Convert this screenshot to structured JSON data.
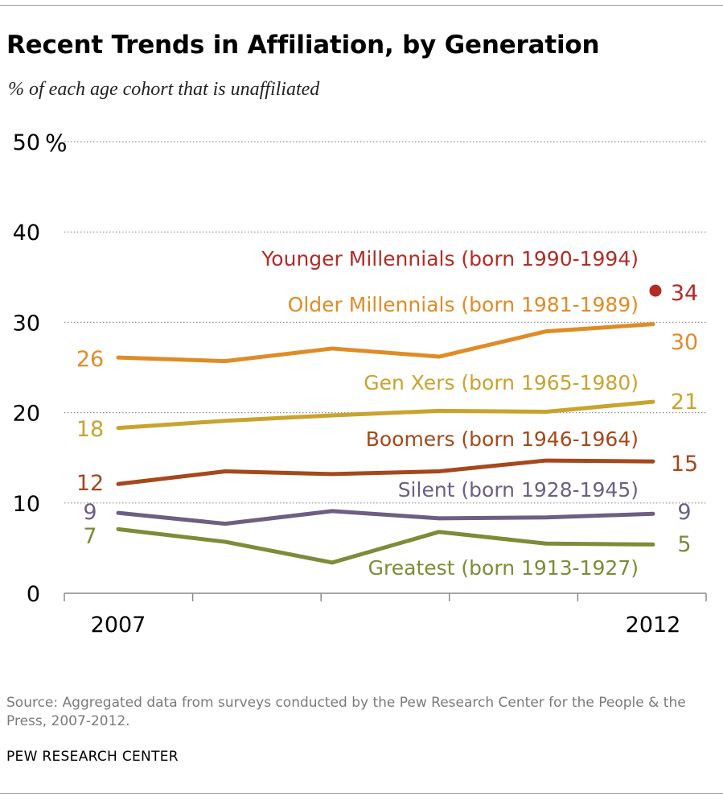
{
  "title": "Recent Trends in Affiliation, by Generation",
  "subtitle": "% of each age cohort that is unaffiliated",
  "source": "Source: Aggregated data from surveys conducted by the Pew Research Center for the People & the Press, 2007-2012.",
  "organization": "PEW RESEARCH CENTER",
  "chart_data": {
    "type": "line",
    "x": [
      2007,
      2008,
      2009,
      2010,
      2011,
      2012
    ],
    "x_tick_labels": [
      "2007",
      "2012"
    ],
    "y_tick_labels": [
      "0",
      "10",
      "20",
      "30",
      "40",
      "50"
    ],
    "y_unit": "%",
    "ylim": [
      0,
      50
    ],
    "grid": "horizontal dotted",
    "series": [
      {
        "name": "Younger Millennials (born 1990-1994)",
        "color": "#b22c25",
        "marker_only": true,
        "values": [
          null,
          null,
          null,
          null,
          null,
          33.5
        ],
        "end_label": "34"
      },
      {
        "name": "Older Millennials (born 1981-1989)",
        "color": "#df8c26",
        "values": [
          26.1,
          25.7,
          27.1,
          26.2,
          29.0,
          29.8
        ],
        "start_label": "26",
        "end_label": "30"
      },
      {
        "name": "Gen Xers (born 1965-1980)",
        "color": "#c9a32f",
        "values": [
          18.3,
          19.1,
          19.7,
          20.2,
          20.1,
          21.2
        ],
        "start_label": "18",
        "end_label": "21"
      },
      {
        "name": "Boomers (born 1946-1964)",
        "color": "#a5481b",
        "values": [
          12.1,
          13.5,
          13.2,
          13.5,
          14.7,
          14.6
        ],
        "start_label": "12",
        "end_label": "15"
      },
      {
        "name": "Silent (born 1928-1945)",
        "color": "#6c5f82",
        "values": [
          8.9,
          7.7,
          9.1,
          8.3,
          8.4,
          8.8
        ],
        "start_label": "9",
        "end_label": "9"
      },
      {
        "name": "Greatest (born 1913-1927)",
        "color": "#7e8b37",
        "values": [
          7.1,
          5.7,
          3.4,
          6.8,
          5.5,
          5.4
        ],
        "start_label": "7",
        "end_label": "5"
      }
    ]
  }
}
